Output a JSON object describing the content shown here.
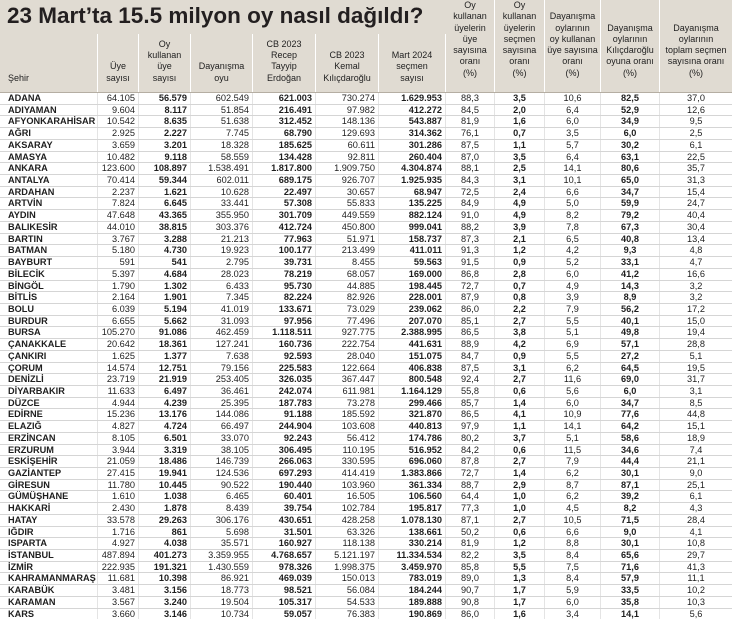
{
  "title": "23 Mart’ta 15.5 milyon oy nasıl dağıldı?",
  "colors": {
    "header_background": "#e0dbd2"
  },
  "table": {
    "columns": [
      {
        "key": "sehir",
        "label": "Şehir"
      },
      {
        "key": "uye-sayisi",
        "label": "Üye\nsayısı"
      },
      {
        "key": "oy-kullanan-uye-sayisi",
        "label": "Oy\nkullanan\nüye\nsayısı"
      },
      {
        "key": "dayanisma-oyu",
        "label": "Dayanışma\noyu"
      },
      {
        "key": "cb2023-erdogan",
        "label": "CB 2023\nRecep\nTayyip\nErdoğan"
      },
      {
        "key": "cb2023-kilicdaroglu",
        "label": "CB 2023\nKemal\nKılıçdaroğlu"
      },
      {
        "key": "mart2024-secmen-sayisi",
        "label": "Mart 2024\nseçmen\nsayısı"
      },
      {
        "key": "oran-uye-sayisina",
        "label": "Oy\nkullanan\nüyelerin\nüye\nsayısına\noranı\n(%)"
      },
      {
        "key": "oran-secmen-sayisina",
        "label": "Oy\nkullanan\nüyelerin\nseçmen\nsayısına\noranı\n(%)"
      },
      {
        "key": "dayanisma-oran-oy-kullanan-uye",
        "label": "Dayanışma\noylarının\noy kullanan\nüye sayısına\noranı\n(%)"
      },
      {
        "key": "dayanisma-oran-kilicdaroglu",
        "label": "Dayanışma\noylarının\nKılıçdaroğlu\noyuna oranı\n(%)"
      },
      {
        "key": "dayanisma-oran-toplam-secmen",
        "label": "Dayanışma\noylarının\ntoplam seçmen\nsayısına oranı\n(%)"
      }
    ],
    "rows": [
      [
        "ADANA",
        "64.105",
        "56.579",
        "602.549",
        "621.003",
        "730.274",
        "1.629.953",
        "88,3",
        "3,5",
        "10,6",
        "82,5",
        "37,0"
      ],
      [
        "ADIYAMAN",
        "9.604",
        "8.117",
        "51.854",
        "216.491",
        "97.982",
        "412.272",
        "84,5",
        "2,0",
        "6,4",
        "52,9",
        "12,6"
      ],
      [
        "AFYONKARAHİSAR",
        "10.542",
        "8.635",
        "51.638",
        "312.452",
        "148.136",
        "543.887",
        "81,9",
        "1,6",
        "6,0",
        "34,9",
        "9,5"
      ],
      [
        "AĞRI",
        "2.925",
        "2.227",
        "7.745",
        "68.790",
        "129.693",
        "314.362",
        "76,1",
        "0,7",
        "3,5",
        "6,0",
        "2,5"
      ],
      [
        "AKSARAY",
        "3.659",
        "3.201",
        "18.328",
        "185.625",
        "60.611",
        "301.286",
        "87,5",
        "1,1",
        "5,7",
        "30,2",
        "6,1"
      ],
      [
        "AMASYA",
        "10.482",
        "9.118",
        "58.559",
        "134.428",
        "92.811",
        "260.404",
        "87,0",
        "3,5",
        "6,4",
        "63,1",
        "22,5"
      ],
      [
        "ANKARA",
        "123.600",
        "108.897",
        "1.538.491",
        "1.817.800",
        "1.909.750",
        "4.304.874",
        "88,1",
        "2,5",
        "14,1",
        "80,6",
        "35,7"
      ],
      [
        "ANTALYA",
        "70.414",
        "59.344",
        "602.011",
        "689.175",
        "926.707",
        "1.925.935",
        "84,3",
        "3,1",
        "10,1",
        "65,0",
        "31,3"
      ],
      [
        "ARDAHAN",
        "2.237",
        "1.621",
        "10.628",
        "22.497",
        "30.657",
        "68.947",
        "72,5",
        "2,4",
        "6,6",
        "34,7",
        "15,4"
      ],
      [
        "ARTVİN",
        "7.824",
        "6.645",
        "33.441",
        "57.308",
        "55.833",
        "135.225",
        "84,9",
        "4,9",
        "5,0",
        "59,9",
        "24,7"
      ],
      [
        "AYDIN",
        "47.648",
        "43.365",
        "355.950",
        "301.709",
        "449.559",
        "882.124",
        "91,0",
        "4,9",
        "8,2",
        "79,2",
        "40,4"
      ],
      [
        "BALIKESİR",
        "44.010",
        "38.815",
        "303.376",
        "412.724",
        "450.800",
        "999.041",
        "88,2",
        "3,9",
        "7,8",
        "67,3",
        "30,4"
      ],
      [
        "BARTIN",
        "3.767",
        "3.288",
        "21.213",
        "77.963",
        "51.971",
        "158.737",
        "87,3",
        "2,1",
        "6,5",
        "40,8",
        "13,4"
      ],
      [
        "BATMAN",
        "5.180",
        "4.730",
        "19.923",
        "100.177",
        "213.499",
        "411.011",
        "91,3",
        "1,2",
        "4,2",
        "9,3",
        "4,8"
      ],
      [
        "BAYBURT",
        "591",
        "541",
        "2.795",
        "39.731",
        "8.455",
        "59.563",
        "91,5",
        "0,9",
        "5,2",
        "33,1",
        "4,7"
      ],
      [
        "BİLECİK",
        "5.397",
        "4.684",
        "28.023",
        "78.219",
        "68.057",
        "169.000",
        "86,8",
        "2,8",
        "6,0",
        "41,2",
        "16,6"
      ],
      [
        "BİNGÖL",
        "1.790",
        "1.302",
        "6.433",
        "95.730",
        "44.885",
        "198.445",
        "72,7",
        "0,7",
        "4,9",
        "14,3",
        "3,2"
      ],
      [
        "BİTLİS",
        "2.164",
        "1.901",
        "7.345",
        "82.224",
        "82.926",
        "228.001",
        "87,9",
        "0,8",
        "3,9",
        "8,9",
        "3,2"
      ],
      [
        "BOLU",
        "6.039",
        "5.194",
        "41.019",
        "133.671",
        "73.029",
        "239.062",
        "86,0",
        "2,2",
        "7,9",
        "56,2",
        "17,2"
      ],
      [
        "BURDUR",
        "6.655",
        "5.662",
        "31.093",
        "97.956",
        "77.496",
        "207.070",
        "85,1",
        "2,7",
        "5,5",
        "40,1",
        "15,0"
      ],
      [
        "BURSA",
        "105.270",
        "91.086",
        "462.459",
        "1.118.511",
        "927.775",
        "2.388.995",
        "86,5",
        "3,8",
        "5,1",
        "49,8",
        "19,4"
      ],
      [
        "ÇANAKKALE",
        "20.642",
        "18.361",
        "127.241",
        "160.736",
        "222.754",
        "441.631",
        "88,9",
        "4,2",
        "6,9",
        "57,1",
        "28,8"
      ],
      [
        "ÇANKIRI",
        "1.625",
        "1.377",
        "7.638",
        "92.593",
        "28.040",
        "151.075",
        "84,7",
        "0,9",
        "5,5",
        "27,2",
        "5,1"
      ],
      [
        "ÇORUM",
        "14.574",
        "12.751",
        "79.156",
        "225.583",
        "122.664",
        "406.838",
        "87,5",
        "3,1",
        "6,2",
        "64,5",
        "19,5"
      ],
      [
        "DENİZLİ",
        "23.719",
        "21.919",
        "253.405",
        "326.035",
        "367.447",
        "800.548",
        "92,4",
        "2,7",
        "11,6",
        "69,0",
        "31,7"
      ],
      [
        "DİYARBAKIR",
        "11.633",
        "6.497",
        "36.461",
        "242.074",
        "611.981",
        "1.164.129",
        "55,8",
        "0,6",
        "5,6",
        "6,0",
        "3,1"
      ],
      [
        "DÜZCE",
        "4.944",
        "4.239",
        "25.395",
        "187.783",
        "73.278",
        "299.466",
        "85,7",
        "1,4",
        "6,0",
        "34,7",
        "8,5"
      ],
      [
        "EDİRNE",
        "15.236",
        "13.176",
        "144.086",
        "91.188",
        "185.592",
        "321.870",
        "86,5",
        "4,1",
        "10,9",
        "77,6",
        "44,8"
      ],
      [
        "ELAZIĞ",
        "4.827",
        "4.724",
        "66.497",
        "244.904",
        "103.608",
        "440.813",
        "97,9",
        "1,1",
        "14,1",
        "64,2",
        "15,1"
      ],
      [
        "ERZİNCAN",
        "8.105",
        "6.501",
        "33.070",
        "92.243",
        "56.412",
        "174.786",
        "80,2",
        "3,7",
        "5,1",
        "58,6",
        "18,9"
      ],
      [
        "ERZURUM",
        "3.944",
        "3.319",
        "38.105",
        "306.495",
        "110.195",
        "516.952",
        "84,2",
        "0,6",
        "11,5",
        "34,6",
        "7,4"
      ],
      [
        "ESKİŞEHİR",
        "21.059",
        "18.486",
        "146.739",
        "266.063",
        "330.595",
        "696.060",
        "87,8",
        "2,7",
        "7,9",
        "44,4",
        "21,1"
      ],
      [
        "GAZİANTEP",
        "27.415",
        "19.941",
        "124.536",
        "697.293",
        "414.419",
        "1.383.866",
        "72,7",
        "1,4",
        "6,2",
        "30,1",
        "9,0"
      ],
      [
        "GİRESUN",
        "11.780",
        "10.445",
        "90.522",
        "190.440",
        "103.960",
        "361.334",
        "88,7",
        "2,9",
        "8,7",
        "87,1",
        "25,1"
      ],
      [
        "GÜMÜŞHANE",
        "1.610",
        "1.038",
        "6.465",
        "60.401",
        "16.505",
        "106.560",
        "64,4",
        "1,0",
        "6,2",
        "39,2",
        "6,1"
      ],
      [
        "HAKKARİ",
        "2.430",
        "1.878",
        "8.439",
        "39.754",
        "102.784",
        "195.817",
        "77,3",
        "1,0",
        "4,5",
        "8,2",
        "4,3"
      ],
      [
        "HATAY",
        "33.578",
        "29.263",
        "306.176",
        "430.651",
        "428.258",
        "1.078.130",
        "87,1",
        "2,7",
        "10,5",
        "71,5",
        "28,4"
      ],
      [
        "IĞDIR",
        "1.716",
        "861",
        "5.698",
        "31.501",
        "63.326",
        "138.661",
        "50,2",
        "0,6",
        "6,6",
        "9,0",
        "4,1"
      ],
      [
        "ISPARTA",
        "4.927",
        "4.038",
        "35.571",
        "160.927",
        "118.138",
        "330.214",
        "81,9",
        "1,2",
        "8,8",
        "30,1",
        "10,8"
      ],
      [
        "İSTANBUL",
        "487.894",
        "401.273",
        "3.359.955",
        "4.768.657",
        "5.121.197",
        "11.334.534",
        "82,2",
        "3,5",
        "8,4",
        "65,6",
        "29,7"
      ],
      [
        "İZMİR",
        "222.935",
        "191.321",
        "1.430.559",
        "978.326",
        "1.998.375",
        "3.459.970",
        "85,8",
        "5,5",
        "7,5",
        "71,6",
        "41,3"
      ],
      [
        "KAHRAMANMARAŞ",
        "11.681",
        "10.398",
        "86.921",
        "469.039",
        "150.013",
        "783.019",
        "89,0",
        "1,3",
        "8,4",
        "57,9",
        "11,1"
      ],
      [
        "KARABÜK",
        "3.481",
        "3.156",
        "18.773",
        "98.521",
        "56.084",
        "184.244",
        "90,7",
        "1,7",
        "5,9",
        "33,5",
        "10,2"
      ],
      [
        "KARAMAN",
        "3.567",
        "3.240",
        "19.504",
        "105.317",
        "54.533",
        "189.888",
        "90,8",
        "1,7",
        "6,0",
        "35,8",
        "10,3"
      ],
      [
        "KARS",
        "3.660",
        "3.146",
        "10.734",
        "59.057",
        "76.383",
        "190.869",
        "86,0",
        "1,6",
        "3,4",
        "14,1",
        "5,6"
      ]
    ]
  }
}
